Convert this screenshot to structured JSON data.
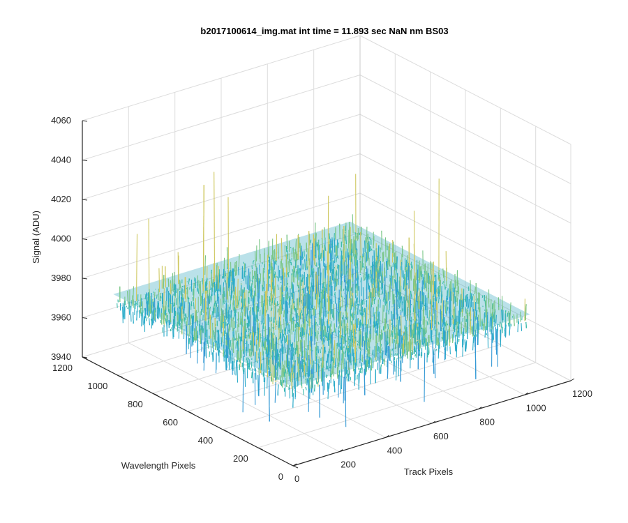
{
  "chart_data": {
    "type": "surface",
    "title": "b2017100614_img.mat int time = 11.893 sec  NaN nm BS03",
    "xlabel": "Track Pixels",
    "ylabel": "Wavelength Pixels",
    "zlabel": "Signal (ADU)",
    "x_ticks": [
      "0",
      "200",
      "400",
      "600",
      "800",
      "1000",
      "1200"
    ],
    "y_ticks": [
      "0",
      "200",
      "400",
      "600",
      "800",
      "1000",
      "1200"
    ],
    "z_ticks": [
      "3940",
      "3960",
      "3980",
      "4000",
      "4020",
      "4040",
      "4060"
    ],
    "xlim": [
      0,
      1200
    ],
    "ylim": [
      0,
      1200
    ],
    "zlim": [
      3940,
      4060
    ],
    "grid": true,
    "surface": {
      "x_range": [
        0,
        1024
      ],
      "y_range": [
        0,
        1024
      ],
      "mean_signal": 3976,
      "typical_min": 3960,
      "typical_max": 3995,
      "outlier_max": 4040,
      "outlier_min": 3945
    },
    "colormap": [
      "#1f8fd1",
      "#16a3c4",
      "#2bb5a3",
      "#6cc07a",
      "#c9c24e"
    ]
  }
}
